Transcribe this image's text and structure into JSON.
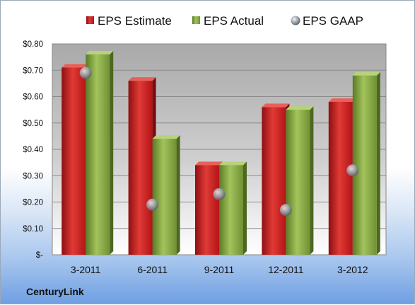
{
  "company": "CenturyLink",
  "legend": [
    {
      "name": "EPS Estimate",
      "color": "#c8191c"
    },
    {
      "name": "EPS Actual",
      "color": "#7ea23c"
    },
    {
      "name": "EPS GAAP",
      "color": "#9aa0a8"
    }
  ],
  "chart_data": {
    "type": "bar",
    "title": "",
    "xlabel": "",
    "ylabel": "",
    "categories": [
      "3-2011",
      "6-2011",
      "9-2011",
      "12-2011",
      "3-2012"
    ],
    "series": [
      {
        "name": "EPS Estimate",
        "type": "bar",
        "color": "#c8191c",
        "values": [
          0.71,
          0.66,
          0.34,
          0.56,
          0.58
        ]
      },
      {
        "name": "EPS Actual",
        "type": "bar",
        "color": "#7ea23c",
        "values": [
          0.76,
          0.44,
          0.34,
          0.55,
          0.68
        ]
      },
      {
        "name": "EPS GAAP",
        "type": "scatter",
        "color": "#9aa0a8",
        "values": [
          0.69,
          0.19,
          0.23,
          0.17,
          0.32
        ]
      }
    ],
    "ylim": [
      0,
      0.8
    ],
    "yticks": [
      "$-",
      "$0.10",
      "$0.20",
      "$0.30",
      "$0.40",
      "$0.50",
      "$0.60",
      "$0.70",
      "$0.80"
    ],
    "grid": true,
    "legend_position": "top"
  }
}
